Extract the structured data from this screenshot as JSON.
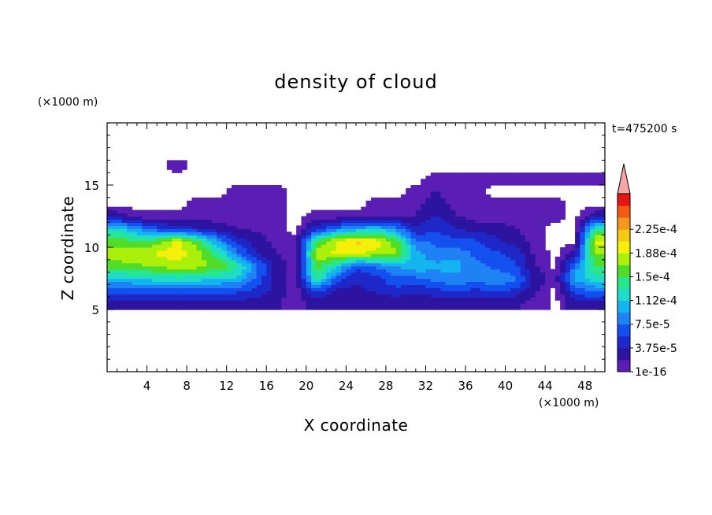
{
  "chart_data": {
    "type": "heatmap",
    "title": "density of cloud",
    "xlabel": "X coordinate",
    "ylabel": "Z coordinate",
    "x_unit": "(×1000 m)",
    "y_unit": "(×1000 m)",
    "time_label": "t=475200 s",
    "xlim": [
      0,
      50
    ],
    "ylim": [
      0,
      20
    ],
    "x_ticks": [
      4,
      8,
      12,
      16,
      20,
      24,
      28,
      32,
      36,
      40,
      44,
      48
    ],
    "y_ticks": [
      5,
      10,
      15
    ],
    "colorbar": {
      "labels": [
        "1e-16",
        "3.75e-5",
        "7.5e-5",
        "1.12e-4",
        "1.5e-4",
        "1.88e-4",
        "2.25e-4"
      ],
      "levels": [
        1e-16,
        1.875e-05,
        3.75e-05,
        5.625e-05,
        7.5e-05,
        9.375e-05,
        0.0001125,
        0.00013125,
        0.00015,
        0.00016875,
        0.0001875,
        0.00020625,
        0.000225,
        0.00024375
      ],
      "colors": [
        "#5a1eb4",
        "#2d14a0",
        "#1e28c8",
        "#1450f0",
        "#1e82f5",
        "#14b4f0",
        "#1edcc8",
        "#28e68c",
        "#50dc28",
        "#aaf00a",
        "#f5f00a",
        "#f5c814",
        "#f5961e",
        "#f55a14",
        "#e61414"
      ],
      "extend_color": "#f5a5a5"
    },
    "field": {
      "x_centers": [
        1,
        3,
        5,
        7,
        9,
        11,
        13,
        15,
        17,
        19,
        21,
        23,
        25,
        27,
        29,
        31,
        33,
        35,
        37,
        39,
        41,
        43,
        45,
        47,
        49
      ],
      "z_centers": [
        5.5,
        6.5,
        7.5,
        8.5,
        9.5,
        10.5,
        11.5,
        12.5,
        13.5,
        14.5,
        15.5,
        16.5
      ],
      "density": [
        [
          3e-05,
          3e-05,
          3e-05,
          3e-05,
          3e-05,
          3e-05,
          3e-05,
          2.5e-05,
          2e-05,
          1e-05,
          2.5e-05,
          2e-05,
          2e-05,
          2e-05,
          2e-05,
          2e-05,
          2e-05,
          2e-05,
          2e-05,
          2e-05,
          2e-05,
          1.5e-05,
          0,
          3e-05,
          3e-05
        ],
        [
          6e-05,
          6e-05,
          6.5e-05,
          6.5e-05,
          6.5e-05,
          6e-05,
          6e-05,
          5e-05,
          3e-05,
          1e-05,
          6e-05,
          3e-05,
          3e-05,
          4e-05,
          5e-05,
          4e-05,
          5e-05,
          6e-05,
          5e-05,
          6e-05,
          5e-05,
          2e-05,
          0,
          6e-05,
          8e-05
        ],
        [
          0.00011,
          0.000115,
          0.00012,
          0.000125,
          0.00012,
          0.000115,
          0.00011,
          7e-05,
          3e-05,
          1e-05,
          0.00014,
          7e-05,
          4e-05,
          5e-05,
          7e-05,
          7e-05,
          8e-05,
          9e-05,
          8e-05,
          9e-05,
          8e-05,
          3e-05,
          1e-05,
          0.0001,
          0.00012
        ],
        [
          0.00016,
          0.000165,
          0.00017,
          0.00018,
          0.000175,
          0.000165,
          0.00014,
          8e-05,
          3e-05,
          1e-05,
          0.00016,
          0.00012,
          6e-05,
          8e-05,
          9e-05,
          0.00011,
          0.0001,
          0.0001,
          8e-05,
          7e-05,
          6e-05,
          2e-05,
          0,
          8e-05,
          0.00015
        ],
        [
          0.00018,
          0.000185,
          0.00019,
          0.0002,
          0.00018,
          0.00014,
          8e-05,
          4e-05,
          2e-05,
          1e-05,
          0.00018,
          0.00019,
          0.00019,
          0.00018,
          0.00017,
          0.0001,
          8e-05,
          9e-05,
          7e-05,
          6e-05,
          5e-05,
          1.5e-05,
          0,
          3e-05,
          0.00017
        ],
        [
          0.00016,
          0.00015,
          0.00016,
          0.00019,
          0.00016,
          0.0001,
          5e-05,
          3e-05,
          1e-05,
          1e-05,
          0.00015,
          0.00019,
          0.00021,
          0.0002,
          0.00016,
          8e-05,
          7e-05,
          6e-05,
          6e-05,
          4e-05,
          3e-05,
          1e-05,
          0,
          0,
          0.00019
        ],
        [
          0.00012,
          9e-05,
          6e-05,
          5e-05,
          4e-05,
          3e-05,
          2e-05,
          1.5e-05,
          1e-05,
          0,
          5e-05,
          8e-05,
          0.0001,
          0.00011,
          9e-05,
          4e-05,
          5e-05,
          4e-05,
          3e-05,
          3e-05,
          2e-05,
          1e-05,
          0,
          0,
          0.00014
        ],
        [
          3e-05,
          1e-05,
          1e-05,
          1e-05,
          1e-05,
          1e-05,
          1e-05,
          1e-05,
          1e-05,
          0,
          1e-05,
          1e-05,
          1e-05,
          1e-05,
          1e-05,
          2e-05,
          4e-05,
          2e-05,
          1e-05,
          1e-05,
          1e-05,
          1e-05,
          1e-05,
          0,
          3e-05
        ],
        [
          0,
          0,
          0,
          0,
          1e-05,
          1e-05,
          1e-05,
          1e-05,
          1e-05,
          0,
          0,
          0,
          0,
          1e-05,
          1e-05,
          1e-05,
          3e-05,
          1e-05,
          1e-05,
          1e-05,
          1e-05,
          1e-05,
          1e-05,
          0,
          0
        ],
        [
          0,
          0,
          0,
          0,
          0,
          0,
          1e-05,
          1e-05,
          1e-05,
          0,
          0,
          0,
          0,
          0,
          0,
          1e-05,
          2e-05,
          1e-05,
          1e-05,
          0,
          0,
          0,
          0,
          0,
          0
        ],
        [
          0,
          0,
          0,
          0,
          0,
          0,
          0,
          0,
          0,
          0,
          0,
          0,
          0,
          0,
          0,
          0,
          1e-05,
          1e-05,
          1e-05,
          1e-05,
          1e-05,
          1e-05,
          1e-05,
          1e-05,
          1e-05
        ],
        [
          0,
          0,
          0,
          1e-05,
          0,
          0,
          0,
          0,
          0,
          0,
          0,
          0,
          0,
          0,
          0,
          0,
          0,
          0,
          0,
          0,
          0,
          0,
          0,
          0,
          0
        ]
      ]
    }
  }
}
